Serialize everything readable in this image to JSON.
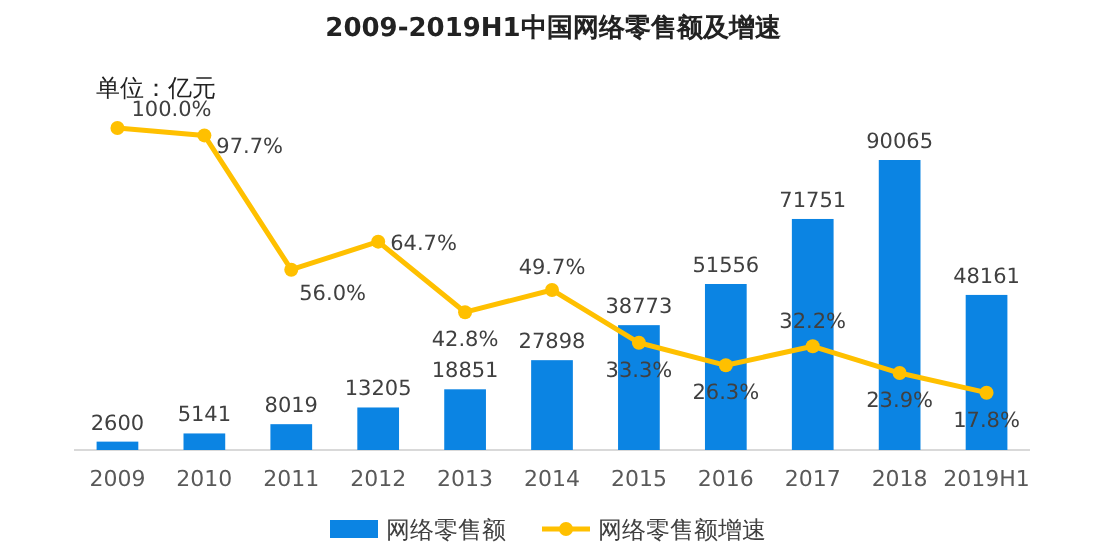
{
  "chart_data": {
    "type": "bar",
    "title": "2009-2019H1中国网络零售额及增速",
    "annotations": [
      "单位：亿元"
    ],
    "categories": [
      "2009",
      "2010",
      "2011",
      "2012",
      "2013",
      "2014",
      "2015",
      "2016",
      "2017",
      "2018",
      "2019H1"
    ],
    "series": [
      {
        "name": "网络零售额",
        "color": "#0b84e3",
        "values": [
          2600,
          5141,
          8019,
          13205,
          18851,
          27898,
          38773,
          51556,
          71751,
          90065,
          48161
        ],
        "value_labels": [
          "2600",
          "5141",
          "8019",
          "13205",
          "18851",
          "27898",
          "38773",
          "51556",
          "71751",
          "90065",
          "48161"
        ]
      },
      {
        "name": "网络零售额增速",
        "type": "line",
        "axis": "y2",
        "color": "#ffc000",
        "marker": "circle",
        "values": [
          100.0,
          97.7,
          56.0,
          64.7,
          42.8,
          49.7,
          33.3,
          26.3,
          32.2,
          23.9,
          17.8
        ],
        "value_labels": [
          "100.0%",
          "97.7%",
          "56.0%",
          "64.7%",
          "42.8%",
          "49.7%",
          "33.3%",
          "26.3%",
          "32.2%",
          "23.9%",
          "17.8%"
        ]
      }
    ],
    "tick_labels": "x",
    "legend": "bottom"
  }
}
